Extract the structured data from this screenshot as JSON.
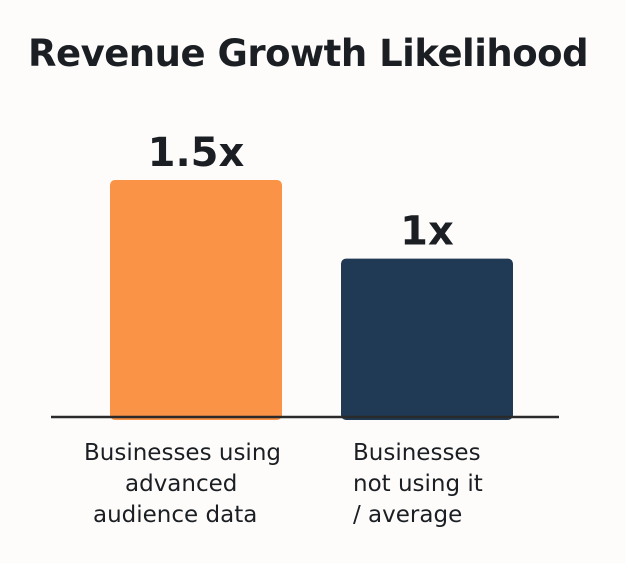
{
  "chart_data": {
    "type": "bar",
    "title": "Revenue Growth Likelihood",
    "xlabel": "",
    "ylabel": "",
    "categories": [
      [
        "Businesses using",
        "advanced",
        "audience data"
      ],
      [
        "Businesses",
        "not using it",
        "/ average"
      ]
    ],
    "values": [
      1.5,
      1
    ],
    "value_labels": [
      "1.5x",
      "1x"
    ],
    "colors": [
      "#fb9346",
      "#203a55"
    ],
    "axis_color": "#2a2a2a",
    "ylim": [
      0,
      1.5
    ],
    "grid": false
  }
}
